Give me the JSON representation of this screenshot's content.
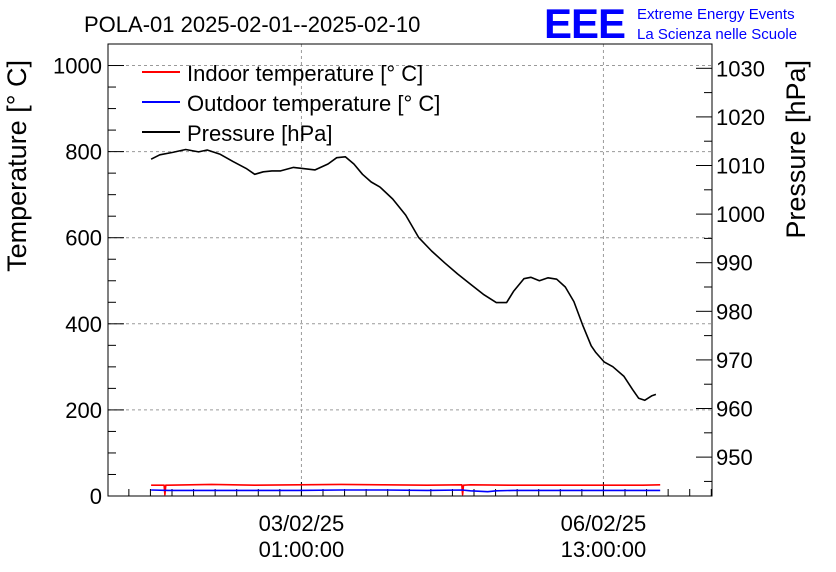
{
  "logo": {
    "text": "EEE",
    "color": "#0000ff"
  },
  "branding": {
    "line1": "Extreme Energy Events",
    "line2": "La Scienza nelle Scuole"
  },
  "chart_data": {
    "type": "line",
    "title": "POLA-01 2025-02-01--2025-02-10",
    "ylabel": "Temperature [° C]",
    "y2label": "Pressure [hPa]",
    "ylim": [
      0,
      1050
    ],
    "y2lim": [
      942,
      1035
    ],
    "yticks": [
      0,
      200,
      400,
      600,
      800,
      1000
    ],
    "y2ticks": [
      950,
      960,
      970,
      980,
      990,
      1000,
      1010,
      1020,
      1030
    ],
    "xticks": [
      {
        "x": 2.0417,
        "date": "03/02/25",
        "time": "01:00:00"
      },
      {
        "x": 5.5417,
        "date": "06/02/25",
        "time": "13:00:00"
      }
    ],
    "xlim": [
      -0.2,
      6.8
    ],
    "x_unit": "days since 2025-02-01 00:00",
    "grid": true,
    "legend_position": "top-left",
    "series": [
      {
        "name": "Indoor temperature [° C]",
        "axis": "left",
        "color": "#ff0000",
        "x": [
          0.3,
          0.45,
          0.46,
          0.47,
          0.5,
          1.0,
          1.5,
          2.0,
          2.5,
          3.0,
          3.5,
          3.9,
          3.91,
          3.92,
          4.0,
          4.5,
          5.0,
          5.5,
          6.0,
          6.2
        ],
        "y": [
          25,
          25,
          3,
          25,
          25,
          27,
          25,
          26,
          27,
          26,
          25,
          26,
          3,
          25,
          26,
          25,
          25,
          25,
          25,
          26
        ]
      },
      {
        "name": "Outdoor temperature [° C]",
        "axis": "left",
        "color": "#0000ff",
        "x": [
          0.3,
          0.5,
          1.0,
          1.5,
          2.0,
          2.5,
          3.0,
          3.5,
          3.9,
          4.0,
          4.2,
          4.3,
          4.5,
          5.0,
          5.5,
          6.0,
          6.2
        ],
        "y": [
          14,
          13,
          13,
          13,
          13,
          14,
          14,
          13,
          14,
          12,
          10,
          12,
          13,
          13,
          13,
          13,
          13
        ]
      },
      {
        "name": "Pressure [hPa]",
        "axis": "right",
        "color": "#000000",
        "x": [
          0.3,
          0.4,
          0.55,
          0.7,
          0.85,
          0.95,
          1.1,
          1.25,
          1.4,
          1.5,
          1.6,
          1.7,
          1.8,
          1.95,
          2.1,
          2.2,
          2.35,
          2.45,
          2.55,
          2.65,
          2.75,
          2.85,
          2.95,
          3.1,
          3.25,
          3.4,
          3.55,
          3.7,
          3.85,
          4.0,
          4.15,
          4.3,
          4.42,
          4.5,
          4.62,
          4.7,
          4.8,
          4.9,
          5.0,
          5.1,
          5.2,
          5.3,
          5.4,
          5.45,
          5.55,
          5.65,
          5.78,
          5.88,
          5.95,
          6.02,
          6.1,
          6.15
        ],
        "y": [
          1011.3,
          1012.2,
          1012.7,
          1013.3,
          1012.8,
          1013.2,
          1012.3,
          1010.8,
          1009.4,
          1008.2,
          1008.7,
          1008.9,
          1008.9,
          1009.6,
          1009.3,
          1009.1,
          1010.3,
          1011.6,
          1011.8,
          1010.3,
          1008.2,
          1006.6,
          1005.6,
          1003.1,
          999.8,
          995.2,
          992.4,
          990.0,
          987.7,
          985.6,
          983.5,
          981.8,
          981.8,
          984.1,
          986.7,
          987.0,
          986.3,
          986.9,
          986.6,
          985.0,
          982.0,
          977.2,
          972.9,
          971.6,
          969.6,
          968.6,
          966.6,
          963.9,
          962.1,
          961.7,
          962.6,
          962.9
        ]
      }
    ]
  }
}
